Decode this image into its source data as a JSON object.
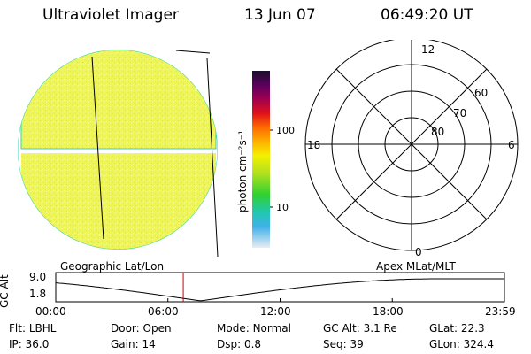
{
  "header": {
    "title": "Ultraviolet Imager",
    "date": "13 Jun 07",
    "time": "06:49:20 UT"
  },
  "colorbar": {
    "label": "photon cm⁻²s⁻¹",
    "ticks": [
      {
        "label": "100",
        "value": 100
      },
      {
        "label": "10",
        "value": 10
      }
    ]
  },
  "polar_plot": {
    "mlt_labels": {
      "top": "12",
      "bottom": "0",
      "left": "18",
      "right": "6"
    },
    "lat_labels": [
      "80",
      "70",
      "60"
    ]
  },
  "altitude_track": {
    "left_label": "Geographic Lat/Lon",
    "right_label": "Apex MLat/MLT",
    "axis_label": "GC Alt",
    "y_ticks": [
      "9.0",
      "1.8"
    ],
    "x_ticks": [
      "00:00",
      "06:00",
      "12:00",
      "18:00",
      "23:59"
    ],
    "current_time_hours": 6.82
  },
  "status": {
    "flt": {
      "label": "Flt:",
      "value": "LBHL"
    },
    "door": {
      "label": "Door:",
      "value": "Open"
    },
    "mode": {
      "label": "Mode:",
      "value": "Normal"
    },
    "gc_alt": {
      "label": "GC Alt:",
      "value": "3.1 Re"
    },
    "glat": {
      "label": "GLat:",
      "value": "22.3"
    },
    "ip": {
      "label": "IP:",
      "value": "36.0"
    },
    "gain": {
      "label": "Gain:",
      "value": "14"
    },
    "dsp": {
      "label": "Dsp:",
      "value": "0.8"
    },
    "seq": {
      "label": "Seq:",
      "value": "39"
    },
    "glon": {
      "label": "GLon:",
      "value": "324.4"
    }
  },
  "colors": {
    "disk_fill": "#eef556",
    "disk_edge": "#2fd5b8",
    "time_marker": "#cc0000"
  }
}
